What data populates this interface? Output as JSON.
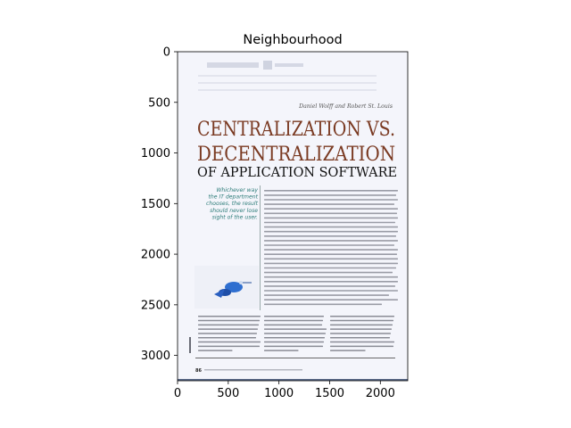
{
  "chart_data": {
    "type": "image",
    "title": "Neighbourhood",
    "xlabel": "",
    "ylabel": "",
    "xlim": [
      0,
      2270
    ],
    "ylim": [
      3250,
      0
    ],
    "xticks": [
      0,
      500,
      1000,
      1500,
      2000
    ],
    "yticks": [
      0,
      500,
      1000,
      1500,
      2000,
      2500,
      3000
    ],
    "grid": false,
    "legend": "none"
  },
  "scan": {
    "author_line": "Daniel Wolff and Robert St. Louis",
    "headline_line1": "CENTRALIZATION VS.",
    "headline_line2": "DECENTRALIZATION",
    "headline_line3": "OF APPLICATION SOFTWARE",
    "pullquote": [
      "Whichever way",
      "the IT department",
      "chooses, the result",
      "should never lose",
      "sight of the user."
    ],
    "page_number": "86"
  },
  "colors": {
    "headline": "#7a3a22",
    "pullquote": "#2e7d7a",
    "paper": "#f4f5fb",
    "text_gray": "#8a8c96",
    "figure_blue": "#2f6fd0"
  }
}
